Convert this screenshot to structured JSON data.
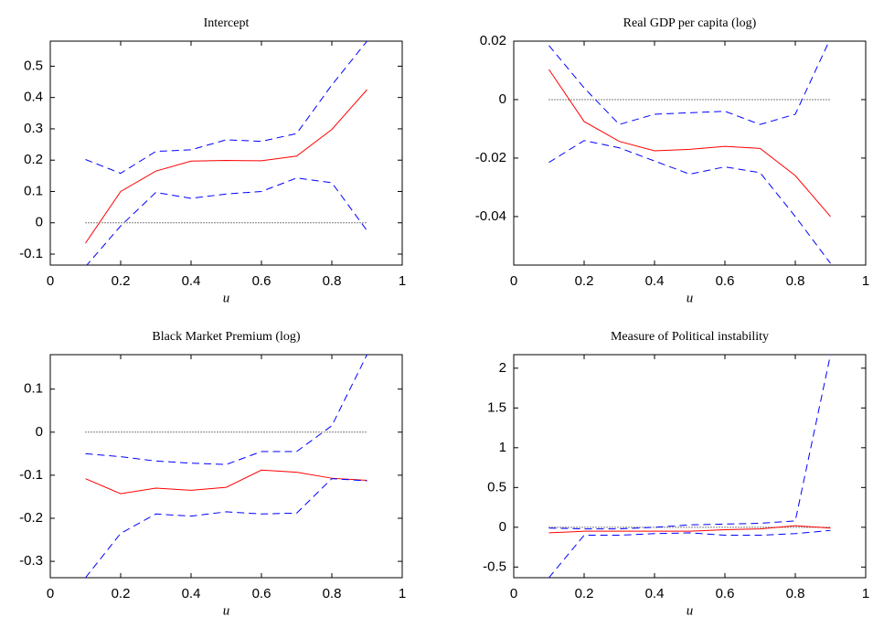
{
  "chart_data": [
    {
      "type": "line",
      "title": "Intercept",
      "x_label": "u",
      "x": [
        0.1,
        0.2,
        0.3,
        0.4,
        0.5,
        0.6,
        0.7,
        0.8,
        0.9
      ],
      "series": [
        {
          "color": "#ff0000",
          "dashed": false,
          "values": [
            -0.065,
            0.1,
            0.165,
            0.197,
            0.199,
            0.198,
            0.213,
            0.298,
            0.425
          ]
        },
        {
          "color": "#0000ff",
          "dashed": true,
          "values": [
            0.202,
            0.158,
            0.228,
            0.233,
            0.265,
            0.26,
            0.285,
            0.44,
            0.58
          ]
        },
        {
          "color": "#0000ff",
          "dashed": true,
          "values": [
            -0.14,
            -0.01,
            0.097,
            0.078,
            0.092,
            0.1,
            0.143,
            0.128,
            -0.025
          ]
        }
      ],
      "reference_line": 0,
      "xlim": [
        0,
        1
      ],
      "xticks": [
        0,
        0.2,
        0.4,
        0.6,
        0.8,
        1
      ],
      "ylim": [
        -0.135,
        0.58
      ],
      "yticks": [
        -0.1,
        0,
        0.1,
        0.2,
        0.3,
        0.4,
        0.5
      ]
    },
    {
      "type": "line",
      "title": "Real GDP per capita (log)",
      "x_label": "u",
      "x": [
        0.1,
        0.2,
        0.3,
        0.4,
        0.5,
        0.6,
        0.7,
        0.8,
        0.9
      ],
      "series": [
        {
          "color": "#ff0000",
          "dashed": false,
          "values": [
            0.0103,
            -0.0075,
            -0.0143,
            -0.0175,
            -0.017,
            -0.016,
            -0.0167,
            -0.026,
            -0.04
          ]
        },
        {
          "color": "#0000ff",
          "dashed": true,
          "values": [
            0.0185,
            0.004,
            -0.0085,
            -0.005,
            -0.0045,
            -0.004,
            -0.0085,
            -0.005,
            0.021
          ]
        },
        {
          "color": "#0000ff",
          "dashed": true,
          "values": [
            -0.0215,
            -0.014,
            -0.0165,
            -0.021,
            -0.0255,
            -0.023,
            -0.025,
            -0.04,
            -0.056
          ]
        }
      ],
      "reference_line": 0,
      "xlim": [
        0,
        1
      ],
      "xticks": [
        0,
        0.2,
        0.4,
        0.6,
        0.8,
        1
      ],
      "ylim": [
        -0.0566,
        0.02
      ],
      "yticks": [
        -0.04,
        -0.02,
        0,
        0.02
      ]
    },
    {
      "type": "line",
      "title": "Black Market Premium (log)",
      "x_label": "u",
      "x": [
        0.1,
        0.2,
        0.3,
        0.4,
        0.5,
        0.6,
        0.7,
        0.8,
        0.9
      ],
      "series": [
        {
          "color": "#ff0000",
          "dashed": false,
          "values": [
            -0.108,
            -0.143,
            -0.13,
            -0.135,
            -0.128,
            -0.088,
            -0.093,
            -0.107,
            -0.112
          ]
        },
        {
          "color": "#0000ff",
          "dashed": true,
          "values": [
            -0.05,
            -0.057,
            -0.067,
            -0.072,
            -0.075,
            -0.045,
            -0.045,
            0.015,
            0.18
          ]
        },
        {
          "color": "#0000ff",
          "dashed": true,
          "values": [
            -0.338,
            -0.235,
            -0.19,
            -0.195,
            -0.185,
            -0.19,
            -0.188,
            -0.108,
            -0.113
          ]
        }
      ],
      "reference_line": 0,
      "xlim": [
        0,
        1
      ],
      "xticks": [
        0,
        0.2,
        0.4,
        0.6,
        0.8,
        1
      ],
      "ylim": [
        -0.338,
        0.18
      ],
      "yticks": [
        -0.3,
        -0.2,
        -0.1,
        0,
        0.1
      ]
    },
    {
      "type": "line",
      "title": "Measure of Political instability",
      "x_label": "u",
      "x": [
        0.1,
        0.2,
        0.3,
        0.4,
        0.5,
        0.6,
        0.7,
        0.8,
        0.9
      ],
      "series": [
        {
          "color": "#ff0000",
          "dashed": false,
          "values": [
            -0.07,
            -0.05,
            -0.05,
            -0.05,
            -0.05,
            -0.03,
            -0.02,
            0.02,
            -0.01
          ]
        },
        {
          "color": "#0000ff",
          "dashed": true,
          "values": [
            -0.01,
            -0.02,
            -0.02,
            0.0,
            0.03,
            0.04,
            0.05,
            0.08,
            2.17
          ]
        },
        {
          "color": "#0000ff",
          "dashed": true,
          "values": [
            -0.634,
            -0.1,
            -0.1,
            -0.08,
            -0.07,
            -0.1,
            -0.1,
            -0.08,
            -0.04
          ]
        }
      ],
      "reference_line": 0,
      "xlim": [
        0,
        1
      ],
      "xticks": [
        0,
        0.2,
        0.4,
        0.6,
        0.8,
        1
      ],
      "ylim": [
        -0.634,
        2.17
      ],
      "yticks": [
        -0.5,
        0,
        0.5,
        1,
        1.5,
        2
      ]
    }
  ]
}
